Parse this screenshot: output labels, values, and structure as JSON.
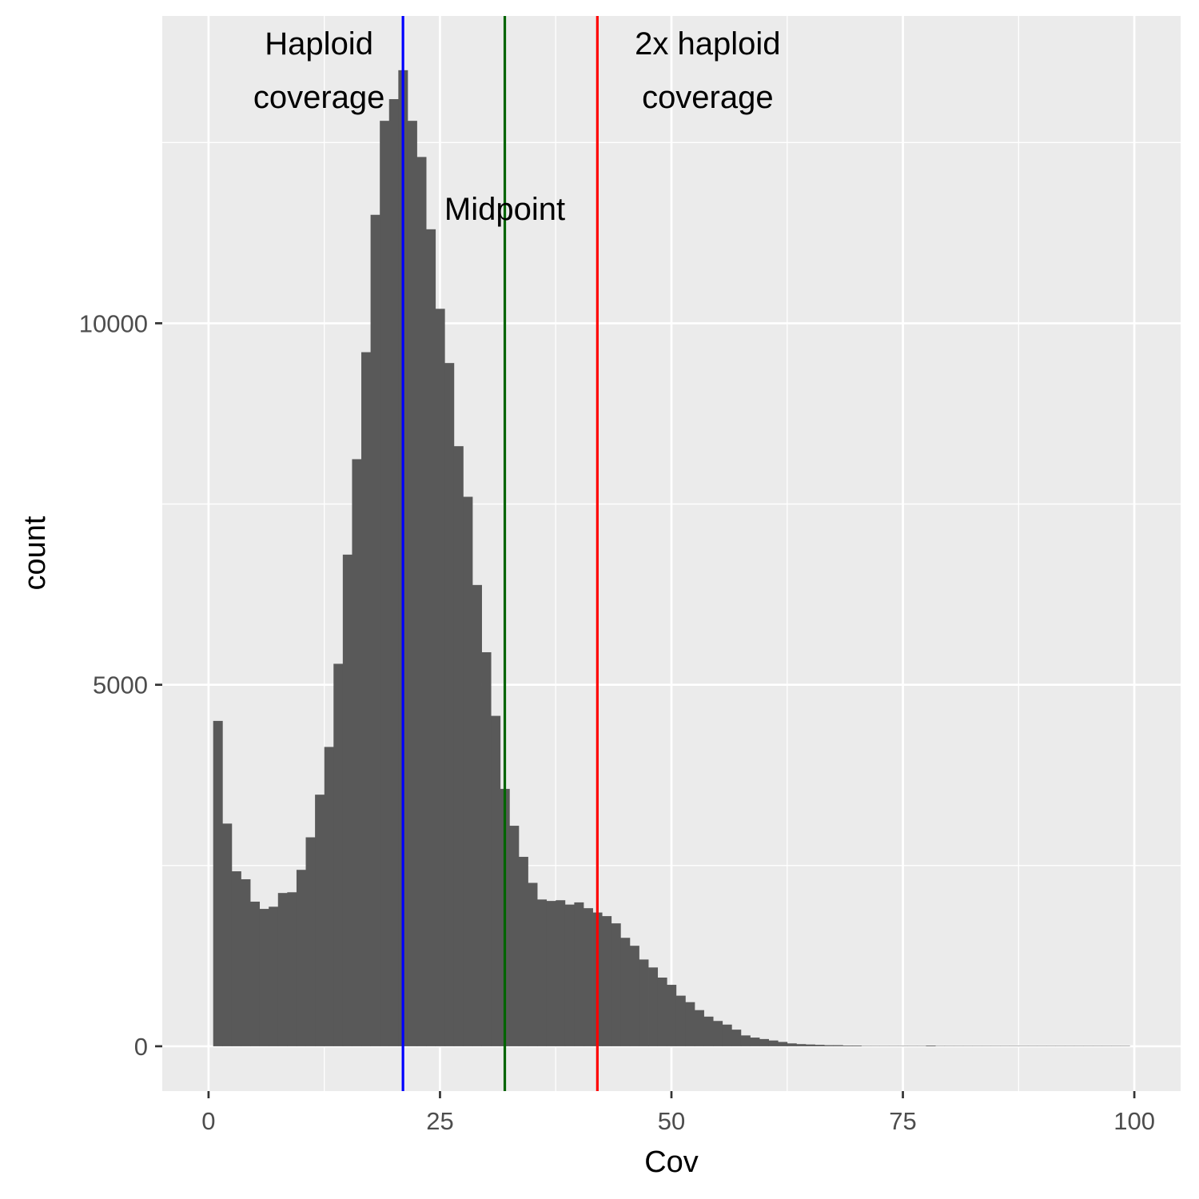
{
  "chart_data": {
    "type": "bar",
    "subtype": "histogram",
    "title": "",
    "xlabel": "Cov",
    "ylabel": "count",
    "xlim": [
      -5,
      105
    ],
    "ylim": [
      -620,
      14250
    ],
    "x_ticks": [
      0,
      25,
      50,
      75,
      100
    ],
    "y_ticks": [
      0,
      5000,
      10000
    ],
    "x_tick_labels": [
      "0",
      "25",
      "50",
      "75",
      "100"
    ],
    "y_tick_labels": [
      "0",
      "5000",
      "10000"
    ],
    "grid": true,
    "legend": "none",
    "colors": {
      "panel_bg": "#ebebeb",
      "grid": "#ffffff",
      "bars": "#595959",
      "haploid_line": "#0000ff",
      "midpoint_line": "#006400",
      "double_line": "#ff0000"
    },
    "bin_width": 1,
    "x": [
      1,
      2,
      3,
      4,
      5,
      6,
      7,
      8,
      9,
      10,
      11,
      12,
      13,
      14,
      15,
      16,
      17,
      18,
      19,
      20,
      21,
      22,
      23,
      24,
      25,
      26,
      27,
      28,
      29,
      30,
      31,
      32,
      33,
      34,
      35,
      36,
      37,
      38,
      39,
      40,
      41,
      42,
      43,
      44,
      45,
      46,
      47,
      48,
      49,
      50,
      51,
      52,
      53,
      54,
      55,
      56,
      57,
      58,
      59,
      60,
      61,
      62,
      63,
      64,
      65,
      66,
      67,
      68,
      69,
      70,
      71,
      72,
      73,
      74,
      75,
      76,
      77,
      78,
      79,
      80,
      81,
      82,
      83,
      84,
      85,
      86,
      87,
      88,
      89,
      90,
      91,
      92,
      93,
      94,
      95,
      96,
      97,
      98,
      99
    ],
    "values": [
      4500,
      3080,
      2420,
      2310,
      2000,
      1900,
      1930,
      2120,
      2130,
      2440,
      2890,
      3480,
      4140,
      5290,
      6800,
      8120,
      9600,
      11500,
      12800,
      13100,
      13500,
      12800,
      12300,
      11300,
      10200,
      9450,
      8300,
      7600,
      6380,
      5450,
      4570,
      3560,
      3050,
      2620,
      2260,
      2030,
      2010,
      2020,
      1960,
      1990,
      1910,
      1850,
      1800,
      1700,
      1500,
      1390,
      1200,
      1090,
      950,
      850,
      700,
      610,
      500,
      410,
      350,
      300,
      230,
      150,
      120,
      100,
      80,
      60,
      40,
      30,
      25,
      20,
      15,
      15,
      10,
      10,
      5,
      5,
      5,
      5,
      5,
      5,
      5,
      10,
      5,
      5,
      5,
      5,
      5,
      5,
      5,
      5,
      5,
      5,
      5,
      5,
      5,
      5,
      5,
      5,
      5,
      5,
      5,
      5,
      5
    ],
    "vlines": [
      {
        "x": 21,
        "color": "#0000ff",
        "label_lines": [
          "Haploid",
          "coverage"
        ]
      },
      {
        "x": 32,
        "color": "#006400",
        "label_lines": [
          "Midpoint"
        ]
      },
      {
        "x": 42,
        "color": "#ff0000",
        "label_lines": [
          "2x haploid",
          "coverage"
        ]
      }
    ]
  }
}
